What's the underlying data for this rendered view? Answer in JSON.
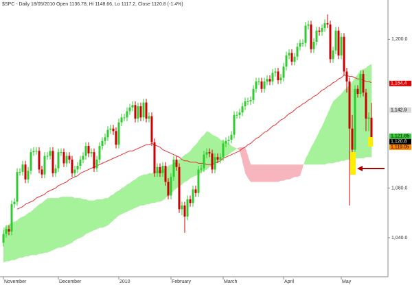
{
  "chart_data": {
    "type": "candlestick",
    "title": "$SPC - Daily 18/05/2010 Open 1136.78, Hi 1148.66, Lo 1117.2, Close 1120.8 (-1.4%)",
    "categories": [
      "November",
      null,
      null,
      null,
      null,
      null,
      null,
      null,
      null,
      null,
      null,
      null,
      null,
      null,
      null,
      null,
      null,
      null,
      null,
      null,
      "December",
      null,
      null,
      null,
      null,
      null,
      null,
      null,
      null,
      null,
      null,
      null,
      null,
      null,
      null,
      null,
      null,
      null,
      null,
      null,
      null,
      null,
      "2010",
      null,
      null,
      null,
      null,
      null,
      null,
      null,
      null,
      null,
      null,
      null,
      null,
      null,
      null,
      null,
      null,
      null,
      null,
      "February",
      null,
      null,
      null,
      null,
      null,
      null,
      null,
      null,
      null,
      null,
      null,
      null,
      null,
      null,
      null,
      null,
      null,
      null,
      "March",
      null,
      null,
      null,
      null,
      null,
      null,
      null,
      null,
      null,
      null,
      null,
      null,
      null,
      null,
      null,
      null,
      null,
      null,
      null,
      null,
      null,
      "April",
      null,
      null,
      null,
      null,
      null,
      null,
      null,
      null,
      null,
      null,
      null,
      null,
      null,
      null,
      null,
      null,
      null,
      null,
      null,
      null,
      "May",
      null,
      null,
      null,
      null,
      null,
      null,
      null,
      null,
      null,
      null,
      null
    ],
    "open": [
      1036,
      1043,
      1047,
      1045,
      1067,
      1069,
      1093,
      1093,
      1099,
      1087,
      1094,
      1109,
      1110,
      1110,
      1095,
      1091,
      1106,
      1106,
      1110,
      1092,
      1096,
      1109,
      1109,
      1100,
      1106,
      1103,
      1092,
      1095,
      1098,
      1103,
      1106,
      1114,
      1108,
      1109,
      1096,
      1103,
      1114,
      1118,
      1121,
      1127,
      1128,
      1126,
      1115,
      1133,
      1137,
      1137,
      1142,
      1145,
      1147,
      1136,
      1146,
      1137,
      1149,
      1136,
      1138,
      1117,
      1092,
      1097,
      1092,
      1098,
      1085,
      1074,
      1089,
      1103,
      1097,
      1063,
      1066,
      1057,
      1071,
      1068,
      1079,
      1076,
      1095,
      1096,
      1107,
      1109,
      1108,
      1095,
      1105,
      1103,
      1105,
      1116,
      1118,
      1119,
      1123,
      1139,
      1139,
      1141,
      1146,
      1150,
      1150,
      1151,
      1160,
      1166,
      1166,
      1160,
      1166,
      1168,
      1166,
      1173,
      1174,
      1167,
      1169,
      1178,
      1187,
      1189,
      1182,
      1186,
      1194,
      1197,
      1197,
      1211,
      1212,
      1192,
      1198,
      1207,
      1206,
      1209,
      1213,
      1212,
      1184,
      1191,
      1207,
      1187,
      1202,
      1174,
      1166,
      1128,
      1111,
      1160,
      1156,
      1172,
      1157,
      1136,
      1136.78
    ],
    "high": [
      1046,
      1050,
      1050,
      1070,
      1072,
      1096,
      1096,
      1102,
      1102,
      1097,
      1112,
      1113,
      1113,
      1113,
      1098,
      1109,
      1109,
      1113,
      1113,
      1099,
      1112,
      1112,
      1112,
      1109,
      1109,
      1106,
      1098,
      1101,
      1106,
      1109,
      1117,
      1117,
      1112,
      1112,
      1106,
      1117,
      1121,
      1124,
      1130,
      1131,
      1131,
      1129,
      1136,
      1140,
      1140,
      1145,
      1148,
      1150,
      1150,
      1149,
      1149,
      1152,
      1152,
      1141,
      1141,
      1120,
      1100,
      1100,
      1101,
      1101,
      1088,
      1092,
      1106,
      1106,
      1100,
      1069,
      1069,
      1074,
      1074,
      1082,
      1082,
      1098,
      1099,
      1110,
      1112,
      1112,
      1111,
      1108,
      1108,
      1108,
      1119,
      1121,
      1122,
      1126,
      1142,
      1142,
      1144,
      1149,
      1153,
      1153,
      1154,
      1163,
      1169,
      1169,
      1169,
      1169,
      1171,
      1171,
      1176,
      1177,
      1177,
      1172,
      1181,
      1190,
      1192,
      1192,
      1189,
      1197,
      1200,
      1200,
      1214,
      1215,
      1215,
      1201,
      1210,
      1210,
      1212,
      1216,
      1220,
      1215,
      1194,
      1210,
      1210,
      1205,
      1205,
      1177,
      1169,
      1139,
      1163,
      1163,
      1175,
      1175,
      1160,
      1141,
      1148.66
    ],
    "low": [
      1033,
      1040,
      1042,
      1042,
      1064,
      1066,
      1090,
      1090,
      1084,
      1084,
      1091,
      1106,
      1107,
      1092,
      1088,
      1088,
      1103,
      1103,
      1089,
      1089,
      1093,
      1106,
      1097,
      1097,
      1100,
      1089,
      1089,
      1092,
      1095,
      1100,
      1103,
      1105,
      1105,
      1093,
      1093,
      1100,
      1111,
      1115,
      1118,
      1124,
      1123,
      1112,
      1112,
      1130,
      1134,
      1134,
      1139,
      1142,
      1133,
      1133,
      1134,
      1134,
      1133,
      1133,
      1114,
      1089,
      1089,
      1089,
      1089,
      1082,
      1071,
      1071,
      1086,
      1094,
      1060,
      1058,
      1044,
      1054,
      1065,
      1065,
      1073,
      1073,
      1092,
      1093,
      1104,
      1105,
      1092,
      1092,
      1100,
      1100,
      1102,
      1113,
      1115,
      1116,
      1120,
      1136,
      1136,
      1138,
      1143,
      1147,
      1147,
      1148,
      1157,
      1163,
      1157,
      1157,
      1163,
      1163,
      1163,
      1170,
      1164,
      1164,
      1166,
      1175,
      1184,
      1179,
      1179,
      1183,
      1191,
      1194,
      1194,
      1208,
      1189,
      1189,
      1195,
      1203,
      1203,
      1206,
      1209,
      1181,
      1181,
      1188,
      1184,
      1184,
      1171,
      1157,
      1066,
      1095,
      1108,
      1153,
      1153,
      1154,
      1126,
      1126,
      1117.2
    ],
    "close": [
      1043,
      1047,
      1045,
      1067,
      1069,
      1093,
      1093,
      1099,
      1087,
      1094,
      1109,
      1110,
      1110,
      1095,
      1091,
      1106,
      1106,
      1110,
      1092,
      1096,
      1109,
      1109,
      1100,
      1106,
      1103,
      1092,
      1095,
      1098,
      1103,
      1106,
      1114,
      1108,
      1109,
      1096,
      1103,
      1114,
      1118,
      1121,
      1127,
      1128,
      1126,
      1115,
      1133,
      1137,
      1137,
      1142,
      1145,
      1147,
      1136,
      1146,
      1137,
      1149,
      1136,
      1138,
      1117,
      1092,
      1097,
      1092,
      1098,
      1085,
      1074,
      1089,
      1103,
      1097,
      1063,
      1066,
      1057,
      1071,
      1068,
      1079,
      1076,
      1095,
      1096,
      1107,
      1109,
      1108,
      1095,
      1105,
      1103,
      1105,
      1116,
      1118,
      1119,
      1123,
      1139,
      1139,
      1141,
      1146,
      1150,
      1150,
      1151,
      1160,
      1166,
      1166,
      1160,
      1166,
      1168,
      1166,
      1173,
      1174,
      1167,
      1169,
      1178,
      1187,
      1189,
      1182,
      1186,
      1194,
      1197,
      1197,
      1211,
      1212,
      1192,
      1198,
      1207,
      1206,
      1209,
      1213,
      1212,
      1184,
      1191,
      1207,
      1187,
      1202,
      1174,
      1166,
      1128,
      1111,
      1160,
      1156,
      1172,
      1157,
      1136,
      1137,
      1120.8
    ],
    "up_color": "#2ecc2e",
    "down_color": "#cc0000",
    "cloud": {
      "span_a": [
        1048,
        1049,
        1051,
        1052,
        1053,
        1054,
        1056,
        1057,
        1058,
        1060,
        1061,
        1063,
        1065,
        1067,
        1068,
        1070,
        1072,
        1072,
        1072,
        1072,
        1072,
        1073,
        1073,
        1073,
        1073,
        1073,
        1072,
        1072,
        1072,
        1071,
        1071,
        1070,
        1070,
        1070,
        1071,
        1071,
        1071,
        1072,
        1072,
        1074,
        1075,
        1077,
        1078,
        1080,
        1081,
        1083,
        1084,
        1086,
        1087,
        1089,
        1090,
        1091,
        1091,
        1092,
        1092,
        1093,
        1094,
        1094,
        1095,
        1096,
        1098,
        1099,
        1100,
        1102,
        1103,
        1105,
        1107,
        1108,
        1110,
        1113,
        1115,
        1118,
        1121,
        1123,
        1126,
        1125,
        1123,
        1122,
        1121,
        1119,
        1118,
        1117,
        1116,
        1114,
        1113,
        1112,
        1110,
        1101,
        1092,
        1088,
        1085,
        1085,
        1085,
        1085,
        1085,
        1085,
        1085,
        1085,
        1085,
        1085,
        1085,
        1086,
        1086,
        1087,
        1087,
        1088,
        1089,
        1089,
        1090,
        1097,
        1104,
        1108,
        1113,
        1117,
        1121,
        1126,
        1130,
        1135,
        1140,
        1145,
        1150,
        1152,
        1154,
        1156,
        1159,
        1161,
        1163,
        1166,
        1169,
        1172,
        1175,
        1176,
        1177,
        1179,
        1180
      ],
      "span_b": [
        1020,
        1021,
        1021,
        1022,
        1022,
        1023,
        1024,
        1024,
        1025,
        1025,
        1026,
        1026,
        1026,
        1027,
        1027,
        1028,
        1028,
        1029,
        1030,
        1031,
        1032,
        1032,
        1033,
        1034,
        1035,
        1036,
        1038,
        1039,
        1040,
        1041,
        1043,
        1044,
        1045,
        1046,
        1047,
        1048,
        1048,
        1049,
        1050,
        1052,
        1054,
        1056,
        1058,
        1059,
        1060,
        1061,
        1062,
        1063,
        1064,
        1065,
        1066,
        1066,
        1067,
        1067,
        1068,
        1068,
        1069,
        1069,
        1070,
        1072,
        1074,
        1076,
        1078,
        1080,
        1081,
        1083,
        1085,
        1086,
        1088,
        1089,
        1090,
        1091,
        1093,
        1094,
        1095,
        1097,
        1098,
        1100,
        1101,
        1103,
        1104,
        1106,
        1107,
        1109,
        1110,
        1112,
        1113,
        1113,
        1113,
        1106,
        1099,
        1099,
        1099,
        1099,
        1099,
        1099,
        1099,
        1099,
        1099,
        1099,
        1099,
        1099,
        1099,
        1099,
        1099,
        1099,
        1099,
        1099,
        1099,
        1099,
        1099,
        1099,
        1099,
        1099,
        1099,
        1099,
        1099,
        1099,
        1100,
        1100,
        1100,
        1101,
        1101,
        1102,
        1102,
        1103,
        1103,
        1103,
        1104,
        1104,
        1104,
        1104,
        1105,
        1105,
        1105
      ],
      "up_color": "#a6f29a",
      "down_color": "#f7b5bd"
    },
    "lines": [
      {
        "color": "#e03030",
        "values": [
          null,
          null,
          null,
          null,
          null,
          1063,
          1064,
          1065,
          1067,
          1068,
          1069,
          1070,
          1072,
          1073,
          1074,
          1075,
          1077,
          1078,
          1079,
          1080,
          1082,
          1083,
          1084,
          1085,
          1087,
          1088,
          1089,
          1090,
          1092,
          1093,
          1094,
          1095,
          1096,
          1097,
          1098,
          1099,
          1100,
          1101,
          1102,
          1103,
          1104,
          1105,
          1106,
          1107,
          1108,
          1109,
          1110,
          1110,
          1111,
          1112,
          1113,
          1114,
          1115,
          1115,
          1116,
          1115,
          1114,
          1113,
          1111,
          1110,
          1109,
          1108,
          1107,
          1106,
          1105,
          1103,
          1102,
          1102,
          1101,
          1101,
          1101,
          1100,
          1100,
          1100,
          1099,
          1099,
          1099,
          1100,
          1101,
          1102,
          1104,
          1105,
          1106,
          1107,
          1108,
          1109,
          1110,
          1112,
          1113,
          1115,
          1116,
          1118,
          1120,
          1121,
          1123,
          1125,
          1126,
          1128,
          1130,
          1131,
          1133,
          1135,
          1136,
          1138,
          1140,
          1141,
          1143,
          1145,
          1146,
          1148,
          1149,
          1151,
          1152,
          1154,
          1155,
          1157,
          1159,
          1160,
          1162,
          1163,
          1165,
          1166,
          1168,
          1169,
          1171,
          1171,
          1170,
          1170,
          1169,
          1168,
          1168,
          1167,
          1166,
          1166,
          1165
        ]
      }
    ],
    "price_tags": [
      {
        "value": 1164.4,
        "label": "1,164.4",
        "color": "#dd0000"
      },
      {
        "value": 1142.9,
        "label": "1,142.9",
        "color": "#d9d9d9"
      },
      {
        "value": 1121.85,
        "label": "1,121.85",
        "color": "#3ccc3c"
      },
      {
        "value": 1120.8,
        "label": "1,120.8",
        "color": "#000000"
      },
      {
        "value": 1119.05,
        "label": "1,119.05",
        "color": "#ff8800"
      }
    ],
    "ylim": [
      1008.5,
      1231.7
    ],
    "yticks": [
      {
        "value": 1040,
        "label": "1,040.0"
      },
      {
        "value": 1080,
        "label": "1,080.0"
      },
      {
        "value": 1200,
        "label": "1,200.0"
      }
    ]
  }
}
